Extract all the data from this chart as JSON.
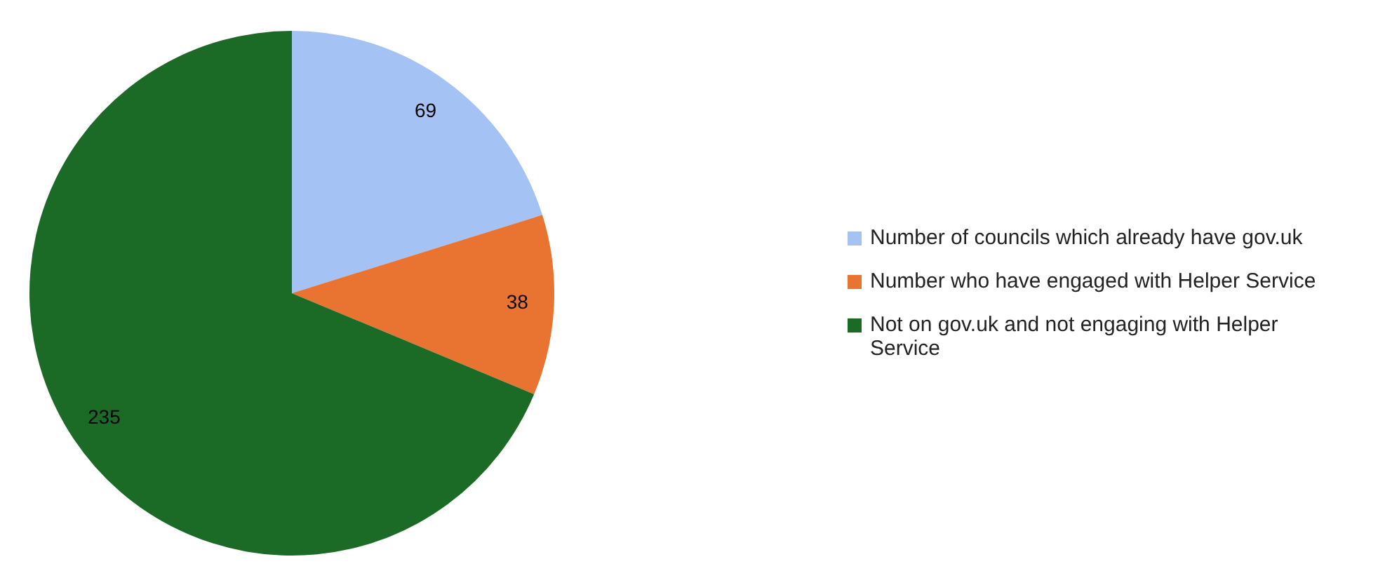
{
  "chart_data": {
    "type": "pie",
    "categories": [
      "Number of councils which already have gov.uk",
      "Number who have engaged with Helper Service",
      "Not on gov.uk and not engaging with Helper Service"
    ],
    "values": [
      69,
      38,
      235
    ],
    "colors": [
      "#a4c2f4",
      "#e97431",
      "#1b6b26"
    ],
    "data_labels": true,
    "legend": "right"
  }
}
